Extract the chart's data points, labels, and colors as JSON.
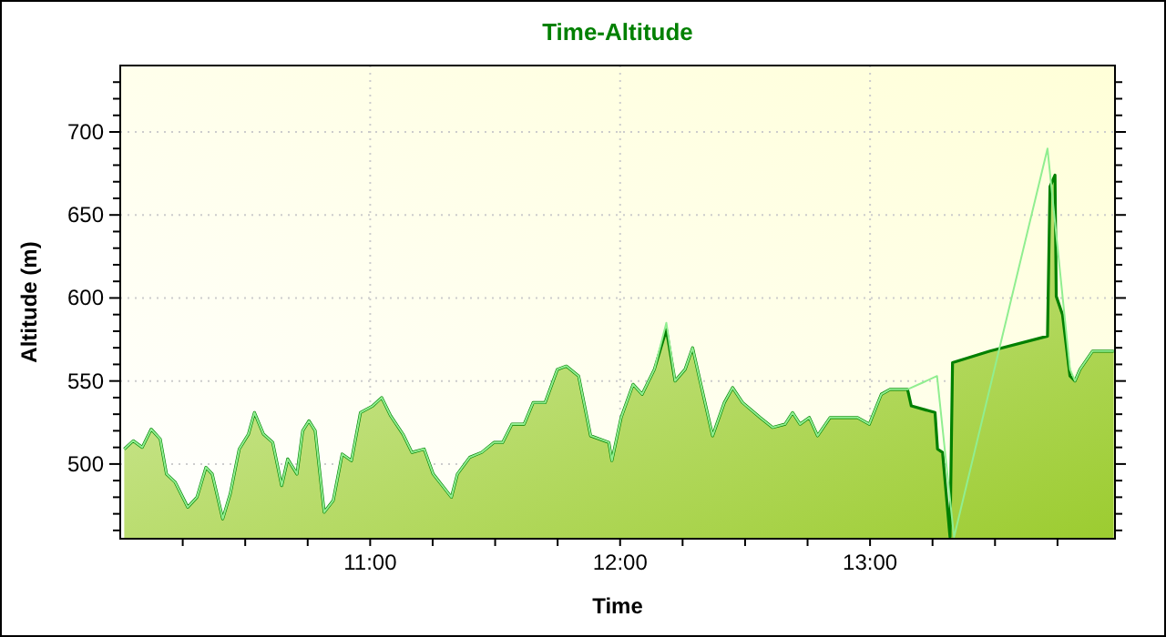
{
  "chart_data": {
    "type": "area",
    "title": "Time-Altitude",
    "xlabel": "Time",
    "ylabel": "Altitude (m)",
    "xlim": [
      10,
      13.98
    ],
    "ylim": [
      455,
      740
    ],
    "xticks": [
      {
        "value": 10.25,
        "label": null
      },
      {
        "value": 10.5,
        "label": null
      },
      {
        "value": 10.75,
        "label": null
      },
      {
        "value": 11,
        "label": "11:00"
      },
      {
        "value": 11.25,
        "label": null
      },
      {
        "value": 11.5,
        "label": null
      },
      {
        "value": 11.75,
        "label": null
      },
      {
        "value": 12,
        "label": "12:00"
      },
      {
        "value": 12.25,
        "label": null
      },
      {
        "value": 12.5,
        "label": null
      },
      {
        "value": 12.75,
        "label": null
      },
      {
        "value": 13,
        "label": "13:00"
      },
      {
        "value": 13.25,
        "label": null
      },
      {
        "value": 13.5,
        "label": null
      },
      {
        "value": 13.75,
        "label": null
      }
    ],
    "yticks": [
      {
        "value": 460,
        "label": null
      },
      {
        "value": 470,
        "label": null
      },
      {
        "value": 480,
        "label": null
      },
      {
        "value": 490,
        "label": null
      },
      500,
      {
        "value": 510,
        "label": null
      },
      {
        "value": 520,
        "label": null
      },
      {
        "value": 530,
        "label": null
      },
      {
        "value": 540,
        "label": null
      },
      550,
      {
        "value": 560,
        "label": null
      },
      {
        "value": 570,
        "label": null
      },
      {
        "value": 580,
        "label": null
      },
      {
        "value": 590,
        "label": null
      },
      600,
      {
        "value": 610,
        "label": null
      },
      {
        "value": 620,
        "label": null
      },
      {
        "value": 630,
        "label": null
      },
      {
        "value": 640,
        "label": null
      },
      650,
      {
        "value": 660,
        "label": null
      },
      {
        "value": 670,
        "label": null
      },
      {
        "value": 680,
        "label": null
      },
      {
        "value": 690,
        "label": null
      },
      700,
      {
        "value": 710,
        "label": null
      },
      {
        "value": 720,
        "label": null
      },
      {
        "value": 730,
        "label": null
      }
    ],
    "grid": true,
    "series": [
      {
        "type": "line",
        "color": "#90ee90",
        "x": [
          10.016,
          10.052,
          10.088,
          10.124,
          10.16,
          10.185,
          10.22,
          10.27,
          10.307,
          10.343,
          10.368,
          10.41,
          10.44,
          10.476,
          10.513,
          10.537,
          10.573,
          10.61,
          10.646,
          10.67,
          10.707,
          10.73,
          10.755,
          10.78,
          10.816,
          10.852,
          10.888,
          10.925,
          10.961,
          11.01,
          11.046,
          11.082,
          11.131,
          11.167,
          11.216,
          11.252,
          11.325,
          11.349,
          11.398,
          11.446,
          11.495,
          11.53,
          11.567,
          11.616,
          11.652,
          11.7,
          11.749,
          11.785,
          11.834,
          11.882,
          11.955,
          11.967,
          12.004,
          12.052,
          12.088,
          12.137,
          12.185,
          12.22,
          12.26,
          12.29,
          12.32,
          12.37,
          12.417,
          12.45,
          12.49,
          12.56,
          12.61,
          12.66,
          12.69,
          12.72,
          12.757,
          12.79,
          12.84,
          12.89,
          12.95,
          12.997,
          13.045,
          13.08,
          13.15,
          13.21,
          13.268,
          13.336,
          13.71,
          13.8,
          13.82,
          13.84,
          13.89,
          13.975
        ],
        "values": [
          509,
          514,
          510,
          521,
          515,
          494,
          489,
          474,
          480,
          498,
          494,
          467,
          482,
          509,
          518,
          531,
          518,
          513,
          487,
          503,
          494,
          520,
          526,
          520,
          471,
          478,
          506,
          502,
          531,
          535,
          540,
          529,
          518,
          507,
          509,
          494,
          480,
          494,
          504,
          507,
          513,
          513,
          524,
          524,
          537,
          537,
          557,
          559,
          553,
          517,
          513,
          502,
          528,
          548,
          542,
          557,
          585,
          550,
          557,
          570,
          550,
          517,
          537,
          546,
          537,
          528,
          522,
          524,
          531,
          524,
          528,
          517,
          528,
          528,
          528,
          524,
          542,
          545,
          545,
          549,
          553,
          456,
          690,
          557,
          550,
          557,
          568,
          568
        ]
      },
      {
        "color": "#008000",
        "x": [
          10.016,
          10.052,
          10.088,
          10.124,
          10.16,
          10.185,
          10.22,
          10.27,
          10.307,
          10.343,
          10.368,
          10.41,
          10.44,
          10.476,
          10.513,
          10.537,
          10.573,
          10.61,
          10.646,
          10.67,
          10.707,
          10.73,
          10.755,
          10.78,
          10.816,
          10.852,
          10.888,
          10.925,
          10.961,
          11.01,
          11.046,
          11.082,
          11.131,
          11.167,
          11.216,
          11.252,
          11.325,
          11.349,
          11.398,
          11.446,
          11.495,
          11.53,
          11.567,
          11.616,
          11.652,
          11.7,
          11.749,
          11.785,
          11.834,
          11.882,
          11.955,
          11.967,
          12.004,
          12.052,
          12.088,
          12.137,
          12.185,
          12.22,
          12.26,
          12.29,
          12.32,
          12.37,
          12.417,
          12.45,
          12.49,
          12.56,
          12.61,
          12.66,
          12.69,
          12.72,
          12.757,
          12.79,
          12.84,
          12.89,
          12.95,
          12.997,
          13.045,
          13.08,
          13.15,
          13.165,
          13.26,
          13.27,
          13.29,
          13.32,
          13.33,
          13.48,
          13.71,
          13.72,
          13.74,
          13.745,
          13.77,
          13.8,
          13.82,
          13.84,
          13.89,
          13.975
        ],
        "values": [
          509,
          514,
          510,
          521,
          515,
          494,
          489,
          474,
          480,
          498,
          494,
          467,
          482,
          509,
          518,
          531,
          518,
          513,
          487,
          503,
          494,
          520,
          526,
          520,
          471,
          478,
          506,
          502,
          531,
          535,
          540,
          529,
          518,
          507,
          509,
          494,
          480,
          494,
          504,
          507,
          513,
          513,
          524,
          524,
          537,
          537,
          557,
          559,
          553,
          517,
          513,
          502,
          528,
          548,
          542,
          557,
          581,
          550,
          557,
          570,
          550,
          517,
          537,
          546,
          537,
          528,
          522,
          524,
          531,
          524,
          528,
          517,
          528,
          528,
          528,
          524,
          542,
          545,
          545,
          535,
          531,
          509,
          507,
          456,
          561,
          568,
          577,
          667,
          674,
          601,
          590,
          553,
          550,
          557,
          568,
          568
        ]
      }
    ]
  }
}
